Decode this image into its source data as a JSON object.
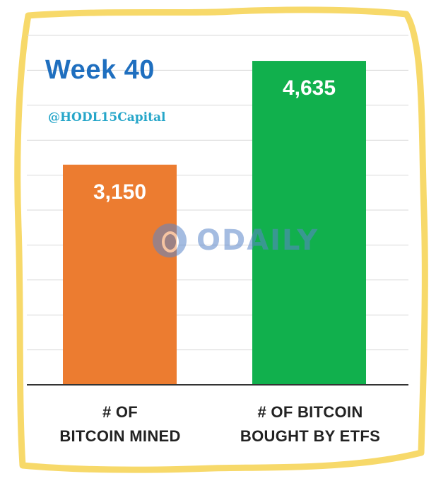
{
  "header": {
    "title": "Week 40",
    "handle": "@HODL15Capital"
  },
  "watermark": {
    "text": "ODAILY",
    "icon": "odaily-logo-icon"
  },
  "colors": {
    "frame": "#f7d96a",
    "mined_bar": "#ec7c30",
    "etf_bar": "#11b04d",
    "title": "#1f6fbf",
    "handle": "#26a6c9"
  },
  "chart_data": {
    "type": "bar",
    "categories": [
      "# OF BITCOIN MINED",
      "# OF BITCOIN BOUGHT BY ETFS"
    ],
    "category_lines": [
      [
        "# OF",
        "BITCOIN MINED"
      ],
      [
        "# OF BITCOIN",
        "BOUGHT BY ETFS"
      ]
    ],
    "values": [
      3150,
      4635
    ],
    "value_labels": [
      "3,150",
      "4,635"
    ],
    "bar_colors": [
      "#ec7c30",
      "#11b04d"
    ],
    "ylim": [
      0,
      5000
    ],
    "grid": true,
    "title": "Week 40",
    "xlabel": "",
    "ylabel": ""
  }
}
